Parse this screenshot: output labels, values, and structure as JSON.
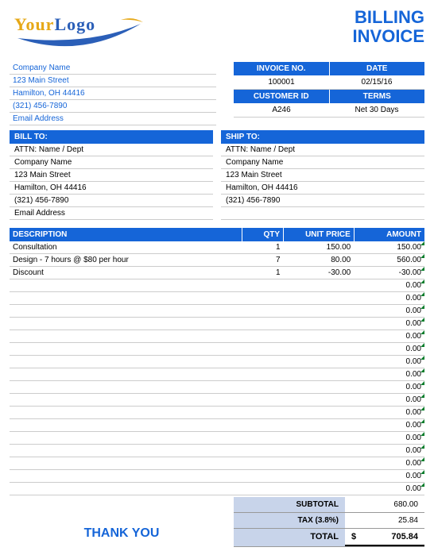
{
  "title_line1": "BILLING",
  "title_line2": "INVOICE",
  "logo": {
    "your": "Your",
    "logo": "Logo"
  },
  "sender": {
    "company": "Company Name",
    "street": "123 Main Street",
    "city": "Hamilton, OH  44416",
    "phone": "(321) 456-7890",
    "email": "Email Address"
  },
  "meta": {
    "invoice_no_label": "INVOICE NO.",
    "date_label": "DATE",
    "invoice_no": "100001",
    "date": "02/15/16",
    "customer_id_label": "CUSTOMER ID",
    "terms_label": "TERMS",
    "customer_id": "A246",
    "terms": "Net 30 Days"
  },
  "bill_to": {
    "heading": "BILL TO:",
    "attn": "ATTN: Name / Dept",
    "company": "Company Name",
    "street": "123 Main Street",
    "city": "Hamilton, OH  44416",
    "phone": "(321) 456-7890",
    "email": "Email Address"
  },
  "ship_to": {
    "heading": "SHIP TO:",
    "attn": "ATTN: Name / Dept",
    "company": "Company Name",
    "street": "123 Main Street",
    "city": "Hamilton, OH  44416",
    "phone": "(321) 456-7890"
  },
  "columns": {
    "desc": "DESCRIPTION",
    "qty": "QTY",
    "price": "UNIT PRICE",
    "amount": "AMOUNT"
  },
  "lines": [
    {
      "desc": "Consultation",
      "qty": "1",
      "price": "150.00",
      "amount": "150.00"
    },
    {
      "desc": "Design - 7 hours @ $80 per hour",
      "qty": "7",
      "price": "80.00",
      "amount": "560.00"
    },
    {
      "desc": "Discount",
      "qty": "1",
      "price": "-30.00",
      "amount": "-30.00"
    },
    {
      "desc": "",
      "qty": "",
      "price": "",
      "amount": "0.00"
    },
    {
      "desc": "",
      "qty": "",
      "price": "",
      "amount": "0.00"
    },
    {
      "desc": "",
      "qty": "",
      "price": "",
      "amount": "0.00"
    },
    {
      "desc": "",
      "qty": "",
      "price": "",
      "amount": "0.00"
    },
    {
      "desc": "",
      "qty": "",
      "price": "",
      "amount": "0.00"
    },
    {
      "desc": "",
      "qty": "",
      "price": "",
      "amount": "0.00"
    },
    {
      "desc": "",
      "qty": "",
      "price": "",
      "amount": "0.00"
    },
    {
      "desc": "",
      "qty": "",
      "price": "",
      "amount": "0.00"
    },
    {
      "desc": "",
      "qty": "",
      "price": "",
      "amount": "0.00"
    },
    {
      "desc": "",
      "qty": "",
      "price": "",
      "amount": "0.00"
    },
    {
      "desc": "",
      "qty": "",
      "price": "",
      "amount": "0.00"
    },
    {
      "desc": "",
      "qty": "",
      "price": "",
      "amount": "0.00"
    },
    {
      "desc": "",
      "qty": "",
      "price": "",
      "amount": "0.00"
    },
    {
      "desc": "",
      "qty": "",
      "price": "",
      "amount": "0.00"
    },
    {
      "desc": "",
      "qty": "",
      "price": "",
      "amount": "0.00"
    },
    {
      "desc": "",
      "qty": "",
      "price": "",
      "amount": "0.00"
    },
    {
      "desc": "",
      "qty": "",
      "price": "",
      "amount": "0.00"
    }
  ],
  "totals": {
    "subtotal_label": "SUBTOTAL",
    "subtotal": "680.00",
    "tax_label": "TAX (3.8%)",
    "tax": "25.84",
    "total_label": "TOTAL",
    "total_currency": "$",
    "total": "705.84"
  },
  "thank_you": "THANK YOU",
  "colors": {
    "primary": "#1565d8",
    "accent": "#e6a817",
    "subtotal_bg": "#c8d4ea",
    "tick": "#0a7d2c",
    "border": "#cccccc"
  }
}
